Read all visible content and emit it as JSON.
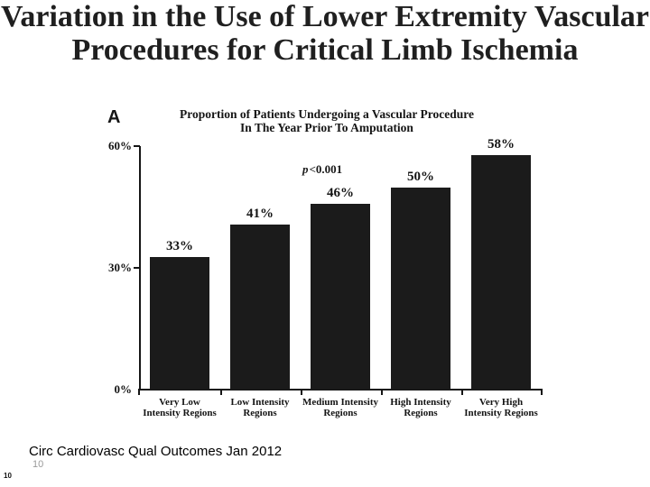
{
  "slide": {
    "title_line1": "Variation in the Use of Lower Extremity Vascular",
    "title_line2": "Procedures for Critical Limb Ischemia",
    "citation": "Circ Cardiovasc Qual Outcomes Jan 2012",
    "page_number_gray": "10",
    "page_number_corner": "10"
  },
  "chart_data": {
    "type": "bar",
    "panel_label": "A",
    "title_line1": "Proportion of Patients Undergoing a Vascular Procedure",
    "title_line2": "In The Year Prior To Amputation",
    "annotation_p": "p",
    "annotation_value": "<0.001",
    "categories": [
      "Very Low\nIntensity Regions",
      "Low Intensity\nRegions",
      "Medium Intensity\nRegions",
      "High Intensity\nRegions",
      "Very High\nIntensity Regions"
    ],
    "values": [
      33,
      41,
      46,
      50,
      58
    ],
    "value_labels": [
      "33%",
      "41%",
      "46%",
      "50%",
      "58%"
    ],
    "y_ticks": [
      {
        "label": "0%",
        "value": 0
      },
      {
        "label": "30%",
        "value": 30
      },
      {
        "label": "60%",
        "value": 60
      }
    ],
    "ylim": [
      0,
      60
    ],
    "xlabel": "",
    "ylabel": "",
    "grid": false,
    "legend": false,
    "bar_color": "#1b1b1b",
    "axis_color": "#161616"
  }
}
